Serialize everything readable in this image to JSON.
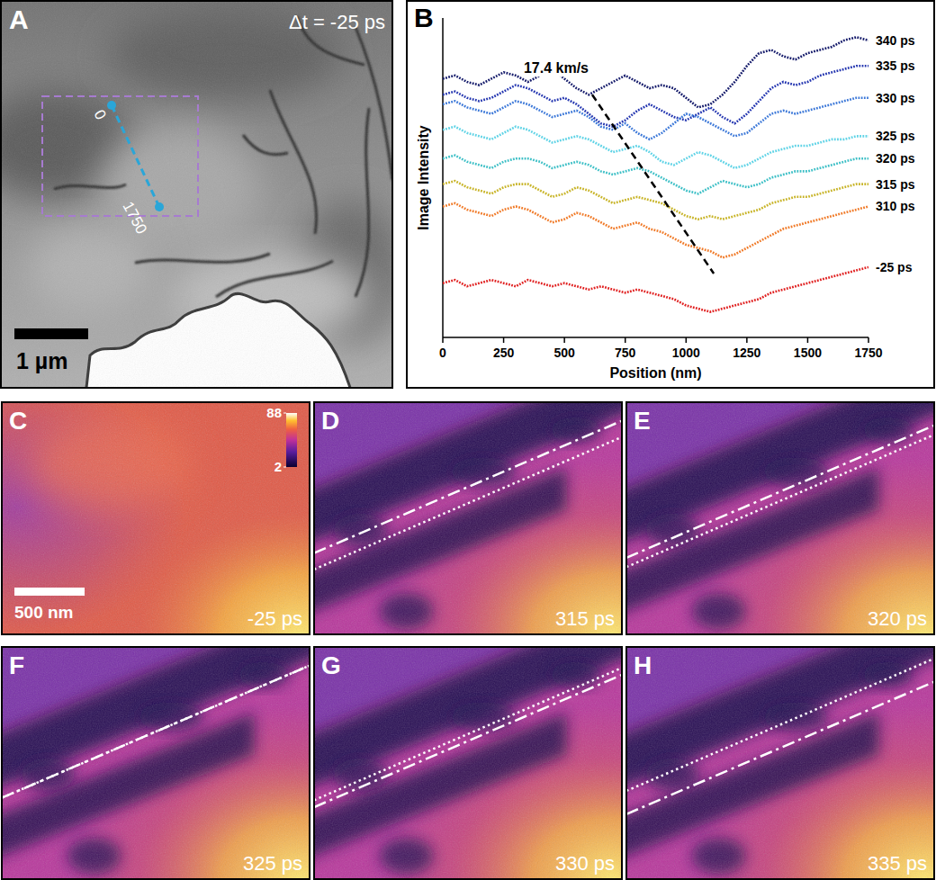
{
  "chart_data": {
    "type": "line",
    "label": "B",
    "xlabel": "Position (nm)",
    "ylabel": "Image Intensity",
    "x": [
      0,
      50,
      100,
      150,
      200,
      250,
      300,
      350,
      400,
      450,
      500,
      550,
      600,
      650,
      700,
      750,
      800,
      850,
      900,
      950,
      1000,
      1050,
      1100,
      1150,
      1200,
      1250,
      1300,
      1350,
      1400,
      1450,
      1500,
      1550,
      1600,
      1650,
      1700,
      1750
    ],
    "xlim": [
      0,
      1750
    ],
    "xticks": [
      0,
      250,
      500,
      750,
      1000,
      1250,
      1500,
      1750
    ],
    "ylim": [
      0,
      100
    ],
    "tick_labels": "x",
    "line_style": "dotted",
    "series": [
      {
        "name": "340 ps",
        "color": "#141a6a",
        "values": [
          81,
          82,
          80,
          79,
          81,
          83,
          82,
          80,
          82,
          84,
          81,
          78,
          76,
          78,
          80,
          82,
          80,
          78,
          79,
          78,
          75,
          72,
          73,
          76,
          80,
          85,
          89,
          90,
          88,
          87,
          89,
          90,
          91,
          93,
          94,
          93
        ]
      },
      {
        "name": "335 ps",
        "color": "#2436b0",
        "values": [
          76,
          77,
          75,
          74,
          75,
          77,
          79,
          78,
          76,
          74,
          75,
          73,
          70,
          67,
          66,
          68,
          71,
          73,
          71,
          69,
          68,
          70,
          72,
          69,
          67,
          70,
          74,
          78,
          80,
          79,
          80,
          82,
          83,
          84,
          85,
          85
        ]
      },
      {
        "name": "330 ps",
        "color": "#3c78d8",
        "values": [
          73,
          74,
          72,
          71,
          70,
          72,
          74,
          73,
          71,
          69,
          70,
          71,
          69,
          66,
          65,
          67,
          64,
          62,
          64,
          67,
          70,
          69,
          67,
          65,
          63,
          64,
          67,
          70,
          71,
          70,
          71,
          72,
          73,
          74,
          75,
          75
        ]
      },
      {
        "name": "325 ps",
        "color": "#5fd3e6",
        "values": [
          65,
          66,
          64,
          63,
          62,
          64,
          66,
          65,
          63,
          61,
          62,
          63,
          62,
          60,
          58,
          59,
          60,
          58,
          55,
          54,
          56,
          58,
          57,
          55,
          53,
          54,
          56,
          58,
          59,
          60,
          60,
          61,
          62,
          62,
          63,
          63
        ]
      },
      {
        "name": "320 ps",
        "color": "#3cbfc6",
        "values": [
          56,
          57,
          55,
          54,
          53,
          55,
          56,
          56,
          55,
          53,
          54,
          55,
          54,
          52,
          51,
          52,
          53,
          52,
          50,
          48,
          46,
          45,
          47,
          49,
          48,
          47,
          48,
          50,
          51,
          52,
          52,
          53,
          54,
          55,
          56,
          56
        ]
      },
      {
        "name": "315 ps",
        "color": "#c8b428",
        "values": [
          48,
          49,
          47,
          46,
          45,
          47,
          48,
          48,
          46,
          44,
          45,
          47,
          46,
          44,
          42,
          43,
          44,
          43,
          42,
          40,
          38,
          37,
          38,
          37,
          38,
          39,
          40,
          42,
          43,
          44,
          44,
          45,
          46,
          47,
          48,
          48
        ]
      },
      {
        "name": "310 ps",
        "color": "#f07a28",
        "values": [
          41,
          42,
          40,
          39,
          38,
          40,
          41,
          40,
          38,
          36,
          37,
          39,
          38,
          36,
          34,
          35,
          36,
          34,
          33,
          31,
          29,
          28,
          27,
          25,
          26,
          28,
          30,
          32,
          34,
          35,
          36,
          37,
          38,
          39,
          40,
          41
        ]
      },
      {
        "name": "-25 ps",
        "color": "#e02020",
        "values": [
          17,
          18,
          16,
          17,
          18,
          17,
          16,
          18,
          17,
          16,
          17,
          16,
          15,
          16,
          15,
          14,
          15,
          14,
          13,
          12,
          10,
          9,
          8,
          9,
          10,
          11,
          12,
          14,
          15,
          16,
          17,
          18,
          19,
          20,
          21,
          22
        ]
      }
    ],
    "annotations": [
      {
        "text": "17.4 km/s",
        "x": [
          614,
          1114
        ],
        "y": [
          76,
          20
        ]
      }
    ]
  },
  "images": [
    {
      "label": "A",
      "time": "Δt = -25 ps",
      "profile_ends": [
        0,
        1750
      ],
      "scale_bar": "1 µm"
    },
    {
      "label": "C",
      "time": "-25 ps",
      "scale_bar": "500 nm",
      "colorbar": {
        "range": [
          2,
          88
        ],
        "ticks": [
          88,
          2
        ]
      }
    },
    {
      "label": "D",
      "time": "315 ps"
    },
    {
      "label": "E",
      "time": "320 ps"
    },
    {
      "label": "F",
      "time": "325 ps"
    },
    {
      "label": "G",
      "time": "330 ps"
    },
    {
      "label": "H",
      "time": "335 ps"
    }
  ]
}
